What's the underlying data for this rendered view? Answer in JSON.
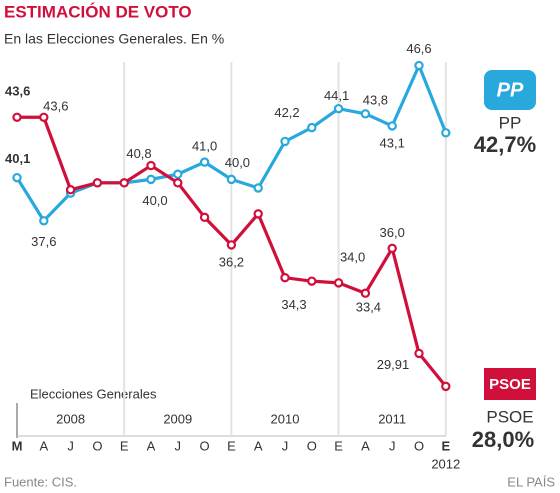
{
  "chart_data": {
    "type": "line",
    "title": "ESTIMACIÓN DE VOTO",
    "subtitle": "En las Elecciones Generales. En %",
    "categories": [
      "M",
      "A",
      "J",
      "O",
      "E",
      "A",
      "J",
      "O",
      "E",
      "A",
      "J",
      "O",
      "E",
      "A",
      "J",
      "O",
      "E"
    ],
    "years": [
      "2008",
      "2009",
      "2010",
      "2011"
    ],
    "last_year": "2012",
    "annotation": "Elecciones Generales",
    "ylim": [
      27.5,
      47.5
    ],
    "series": [
      {
        "name": "PP",
        "color": "#29a8dd",
        "final_label": "42,7%",
        "values": [
          40.1,
          37.6,
          39.2,
          39.8,
          39.8,
          40.0,
          40.3,
          41.0,
          40.0,
          39.5,
          42.2,
          43.0,
          44.1,
          43.8,
          43.1,
          46.6,
          42.7
        ],
        "value_labels": [
          "40,1",
          "37,6",
          null,
          null,
          null,
          "40,0",
          null,
          "41,0",
          "40,0",
          null,
          "42,2",
          null,
          "44,1",
          "43,8",
          "43,1",
          "46,6",
          null
        ]
      },
      {
        "name": "PSOE",
        "color": "#d0103a",
        "final_label": "28,0%",
        "values": [
          43.6,
          43.6,
          39.4,
          39.8,
          39.8,
          40.8,
          39.8,
          37.8,
          36.2,
          38.0,
          34.3,
          34.1,
          34.0,
          33.4,
          36.0,
          29.91,
          28.0
        ],
        "value_labels": [
          "43,6",
          "43,6",
          null,
          null,
          null,
          "40,8",
          null,
          null,
          "36,2",
          null,
          "34,3",
          null,
          "34,0",
          "33,4",
          "36,0",
          "29,91",
          null
        ]
      }
    ],
    "source": "Fuente: CIS.",
    "publisher": "EL PAÍS"
  }
}
